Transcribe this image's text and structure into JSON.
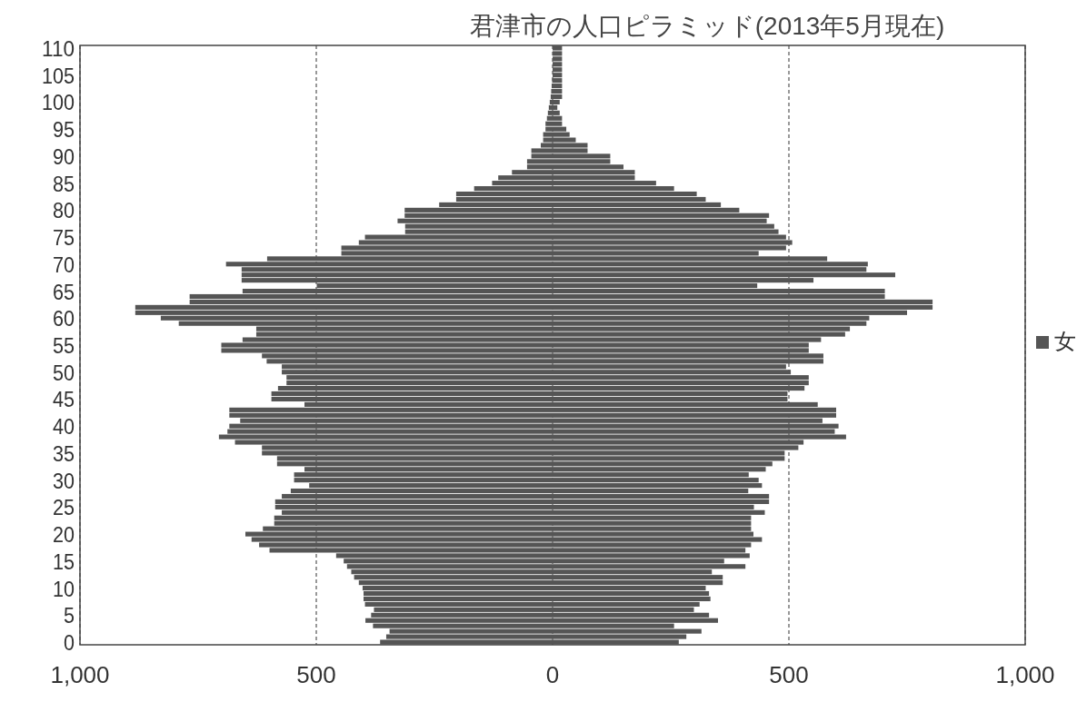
{
  "chart_data": {
    "type": "bar",
    "orientation": "horizontal",
    "title": "君津市の人口ピラミッド(2013年5月現在)",
    "categories": [
      "110",
      null,
      null,
      null,
      null,
      "105",
      null,
      null,
      null,
      null,
      "100",
      null,
      null,
      null,
      null,
      "95",
      null,
      null,
      null,
      null,
      "90",
      null,
      null,
      null,
      null,
      "85",
      null,
      null,
      null,
      null,
      "80",
      null,
      null,
      null,
      null,
      "75",
      null,
      null,
      null,
      null,
      "70",
      null,
      null,
      null,
      null,
      "65",
      null,
      null,
      null,
      null,
      "60",
      null,
      null,
      null,
      null,
      "55",
      null,
      null,
      null,
      null,
      "50",
      null,
      null,
      null,
      null,
      "45",
      null,
      null,
      null,
      null,
      "40",
      null,
      null,
      null,
      null,
      "35",
      null,
      null,
      null,
      null,
      "30",
      null,
      null,
      null,
      null,
      "25",
      null,
      null,
      null,
      null,
      "20",
      null,
      null,
      null,
      null,
      "15",
      null,
      null,
      null,
      null,
      "10",
      null,
      null,
      null,
      null,
      "5",
      null,
      null,
      null,
      null,
      "0"
    ],
    "series": [
      {
        "color": "#555555",
        "values": [
          0,
          0,
          0,
          0,
          0,
          0,
          -1,
          -2,
          -3,
          -4,
          -6,
          -8,
          -10,
          -12,
          -15,
          -15,
          -20,
          -20,
          -25,
          -45,
          -45,
          -54,
          -54,
          -86,
          -115,
          -128,
          -166,
          -204,
          -204,
          -240,
          -313,
          -313,
          -328,
          -312,
          -312,
          -397,
          -410,
          -447,
          -447,
          -604,
          -691,
          -658,
          -658,
          -658,
          -499,
          -656,
          -768,
          -768,
          -883,
          -883,
          -829,
          -791,
          -627,
          -627,
          -656,
          -701,
          -701,
          -615,
          -605,
          -573,
          -573,
          -563,
          -563,
          -581,
          -595,
          -595,
          -525,
          -684,
          -684,
          -661,
          -684,
          -688,
          -706,
          -672,
          -615,
          -615,
          -583,
          -583,
          -525,
          -547,
          -547,
          -515,
          -554,
          -573,
          -587,
          -587,
          -573,
          -589,
          -589,
          -613,
          -650,
          -637,
          -621,
          -599,
          -458,
          -442,
          -435,
          -426,
          -420,
          -410,
          -402,
          -400,
          -400,
          -397,
          -378,
          -384,
          -396,
          -380,
          -345,
          -352,
          -365
        ]
      },
      {
        "name": "女",
        "color": "#555555",
        "values": [
          20,
          20,
          20,
          20,
          20,
          20,
          20,
          20,
          20,
          20,
          15,
          10,
          15,
          20,
          20,
          29,
          36,
          49,
          74,
          74,
          122,
          122,
          150,
          174,
          174,
          219,
          257,
          305,
          324,
          356,
          395,
          458,
          453,
          469,
          478,
          494,
          507,
          494,
          436,
          581,
          667,
          664,
          725,
          552,
          433,
          703,
          703,
          804,
          804,
          750,
          670,
          664,
          629,
          619,
          568,
          542,
          542,
          573,
          573,
          494,
          504,
          542,
          542,
          533,
          497,
          497,
          561,
          600,
          600,
          571,
          605,
          597,
          621,
          531,
          520,
          491,
          491,
          465,
          451,
          415,
          436,
          443,
          414,
          458,
          458,
          426,
          449,
          420,
          420,
          420,
          425,
          443,
          420,
          408,
          417,
          363,
          408,
          337,
          360,
          360,
          324,
          331,
          334,
          311,
          299,
          331,
          350,
          257,
          315,
          283,
          267
        ]
      }
    ],
    "xlim": [
      -1000,
      1000
    ],
    "xticks": [
      {
        "value": -1000,
        "label": "1,000"
      },
      {
        "value": -500,
        "label": "500"
      },
      0,
      500,
      {
        "value": 1000,
        "label": "1,000"
      }
    ],
    "stacked": true,
    "grid": "x",
    "legend": "right"
  }
}
